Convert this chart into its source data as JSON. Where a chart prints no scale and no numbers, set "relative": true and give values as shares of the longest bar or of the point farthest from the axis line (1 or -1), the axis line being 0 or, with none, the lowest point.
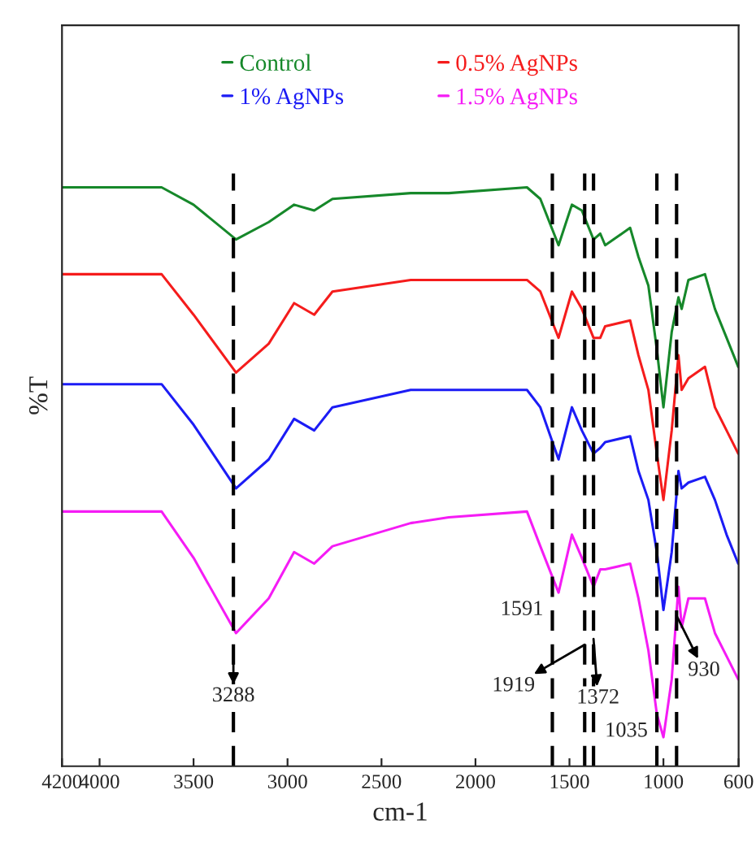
{
  "chart_data": {
    "type": "line",
    "relative": true,
    "xlabel": "cm-1",
    "ylabel": "%T",
    "x": [
      4200,
      3670,
      3500,
      3274,
      3100,
      2965,
      2858,
      2761,
      2345,
      2142,
      1726,
      1655,
      1558,
      1487,
      1434,
      1372,
      1336,
      1310,
      1177,
      1133,
      1080,
      1035,
      1000,
      956,
      920,
      903,
      867,
      779,
      726,
      664,
      602
    ],
    "xlim": [
      4200,
      600
    ],
    "xticks": [
      4200,
      4000,
      3500,
      3000,
      2500,
      2000,
      1500,
      1000,
      600
    ],
    "series": [
      {
        "name": "Control",
        "color": "#16882a",
        "values": [
          1.0,
          1.0,
          0.97,
          0.91,
          0.94,
          0.97,
          0.96,
          0.98,
          0.99,
          0.99,
          1.0,
          0.98,
          0.9,
          0.97,
          0.96,
          0.91,
          0.92,
          0.9,
          0.93,
          0.88,
          0.83,
          0.72,
          0.62,
          0.75,
          0.81,
          0.79,
          0.84,
          0.85,
          0.79,
          0.74,
          0.69
        ]
      },
      {
        "name": "0.5% AgNPs",
        "color": "#f51c1c",
        "values": [
          0.85,
          0.85,
          0.78,
          0.68,
          0.73,
          0.8,
          0.78,
          0.82,
          0.84,
          0.84,
          0.84,
          0.82,
          0.74,
          0.82,
          0.79,
          0.74,
          0.74,
          0.76,
          0.77,
          0.71,
          0.65,
          0.54,
          0.46,
          0.58,
          0.71,
          0.65,
          0.67,
          0.69,
          0.62,
          0.58,
          0.54
        ]
      },
      {
        "name": "1% AgNPs",
        "color": "#1c1cf5",
        "values": [
          0.66,
          0.66,
          0.59,
          0.48,
          0.53,
          0.6,
          0.58,
          0.62,
          0.65,
          0.65,
          0.65,
          0.62,
          0.53,
          0.62,
          0.58,
          0.54,
          0.55,
          0.56,
          0.57,
          0.51,
          0.46,
          0.37,
          0.27,
          0.37,
          0.51,
          0.48,
          0.49,
          0.5,
          0.46,
          0.4,
          0.35
        ]
      },
      {
        "name": "1.5% AgNPs",
        "color": "#f51cf5",
        "values": [
          0.44,
          0.44,
          0.36,
          0.23,
          0.29,
          0.37,
          0.35,
          0.38,
          0.42,
          0.43,
          0.44,
          0.38,
          0.3,
          0.4,
          0.36,
          0.31,
          0.34,
          0.34,
          0.35,
          0.29,
          0.2,
          0.09,
          0.05,
          0.15,
          0.31,
          0.24,
          0.29,
          0.29,
          0.23,
          0.19,
          0.15
        ]
      }
    ],
    "ref_lines": [
      {
        "axis": "x",
        "value": 3288,
        "color": "#000000",
        "line_style": "dashed"
      },
      {
        "axis": "x",
        "value": 1591,
        "color": "#000000",
        "line_style": "dashed"
      },
      {
        "axis": "x",
        "value": 1419,
        "color": "#000000",
        "line_style": "dashed"
      },
      {
        "axis": "x",
        "value": 1372,
        "color": "#000000",
        "line_style": "dashed"
      },
      {
        "axis": "x",
        "value": 1035,
        "color": "#000000",
        "line_style": "dashed"
      },
      {
        "axis": "x",
        "value": 930,
        "color": "#000000",
        "line_style": "dashed"
      }
    ],
    "annotations": [
      {
        "text": "3288",
        "x": 3288,
        "y": 0.2
      },
      {
        "text": "1591",
        "x": 1591,
        "y": 0.27
      },
      {
        "text": "1919",
        "x": 1419,
        "y": 0.21
      },
      {
        "text": "1372",
        "x": 1372,
        "y": 0.22
      },
      {
        "text": "1035",
        "x": 1035,
        "y": 0.06
      },
      {
        "text": "930",
        "x": 930,
        "y": 0.26
      }
    ],
    "legend": "top",
    "grid": false,
    "marker": "none",
    "line_style": "solid"
  }
}
